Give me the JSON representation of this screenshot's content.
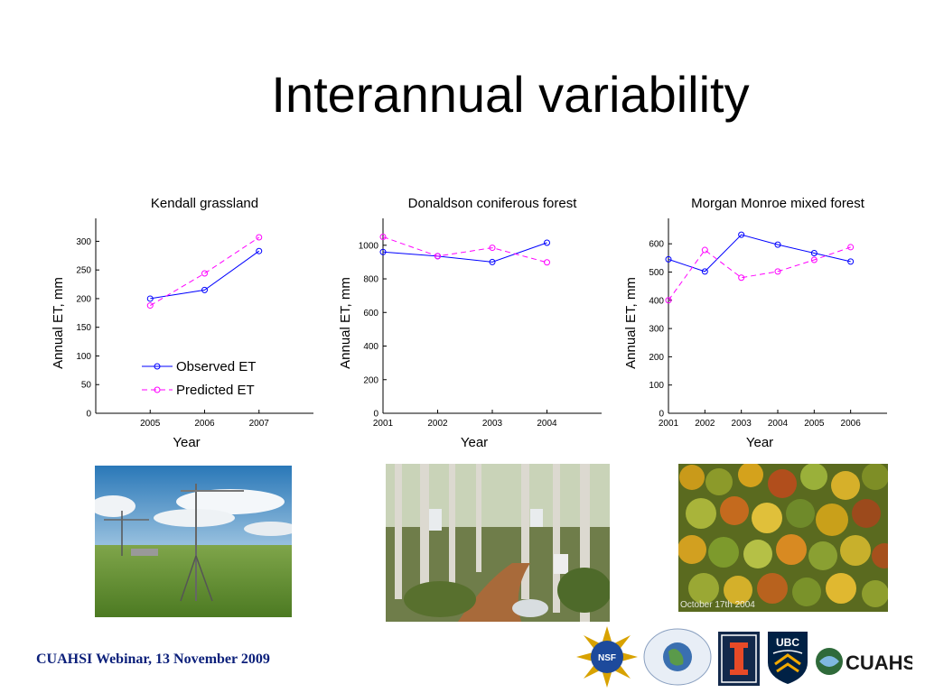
{
  "slide": {
    "title": "Interannual variability",
    "footer": "CUAHSI Webinar, 13 November 2009",
    "photo_caption": "October 17th 2004"
  },
  "legend": {
    "observed": "Observed ET",
    "predicted": "Predicted ET"
  },
  "colors": {
    "observed": "#0000ff",
    "predicted": "#ff00ff",
    "footer": "#0b1f7a"
  },
  "icons": [
    "nsf-logo",
    "predictability-logo",
    "illinois-logo",
    "ubc-logo",
    "cuahsi-logo"
  ],
  "chart_data": [
    {
      "type": "line",
      "title": "Kendall grassland",
      "xlabel": "Year",
      "ylabel": "Annual ET, mm",
      "xlim": [
        2004,
        2008
      ],
      "ylim": [
        0,
        340
      ],
      "xticks": [
        2005,
        2006,
        2007
      ],
      "yticks": [
        0,
        50,
        100,
        150,
        200,
        250,
        300
      ],
      "legend": "lower-right",
      "series": [
        {
          "name": "Observed ET",
          "x": [
            2005,
            2006,
            2007
          ],
          "values": [
            200,
            215,
            283
          ]
        },
        {
          "name": "Predicted ET",
          "x": [
            2005,
            2006,
            2007
          ],
          "values": [
            188,
            244,
            307
          ]
        }
      ]
    },
    {
      "type": "line",
      "title": "Donaldson coniferous forest",
      "xlabel": "Year",
      "ylabel": "Annual ET, mm",
      "xlim": [
        2001,
        2005
      ],
      "ylim": [
        0,
        1160
      ],
      "xticks": [
        2001,
        2002,
        2003,
        2004
      ],
      "yticks": [
        0,
        200,
        400,
        600,
        800,
        1000
      ],
      "series": [
        {
          "name": "Observed ET",
          "x": [
            2001,
            2002,
            2003,
            2004
          ],
          "values": [
            960,
            935,
            900,
            1015
          ]
        },
        {
          "name": "Predicted ET",
          "x": [
            2001,
            2002,
            2003,
            2004
          ],
          "values": [
            1050,
            935,
            985,
            898
          ]
        }
      ]
    },
    {
      "type": "line",
      "title": "Morgan Monroe mixed forest",
      "xlabel": "Year",
      "ylabel": "Annual ET, mm",
      "xlim": [
        2001,
        2007
      ],
      "ylim": [
        0,
        690
      ],
      "xticks": [
        2001,
        2002,
        2003,
        2004,
        2005,
        2006
      ],
      "yticks": [
        0,
        100,
        200,
        300,
        400,
        500,
        600
      ],
      "series": [
        {
          "name": "Observed ET",
          "x": [
            2001,
            2002,
            2003,
            2004,
            2005,
            2006
          ],
          "values": [
            545,
            502,
            632,
            597,
            567,
            537
          ]
        },
        {
          "name": "Predicted ET",
          "x": [
            2001,
            2002,
            2003,
            2004,
            2005,
            2006
          ],
          "values": [
            400,
            578,
            480,
            502,
            543,
            588
          ]
        }
      ]
    }
  ]
}
